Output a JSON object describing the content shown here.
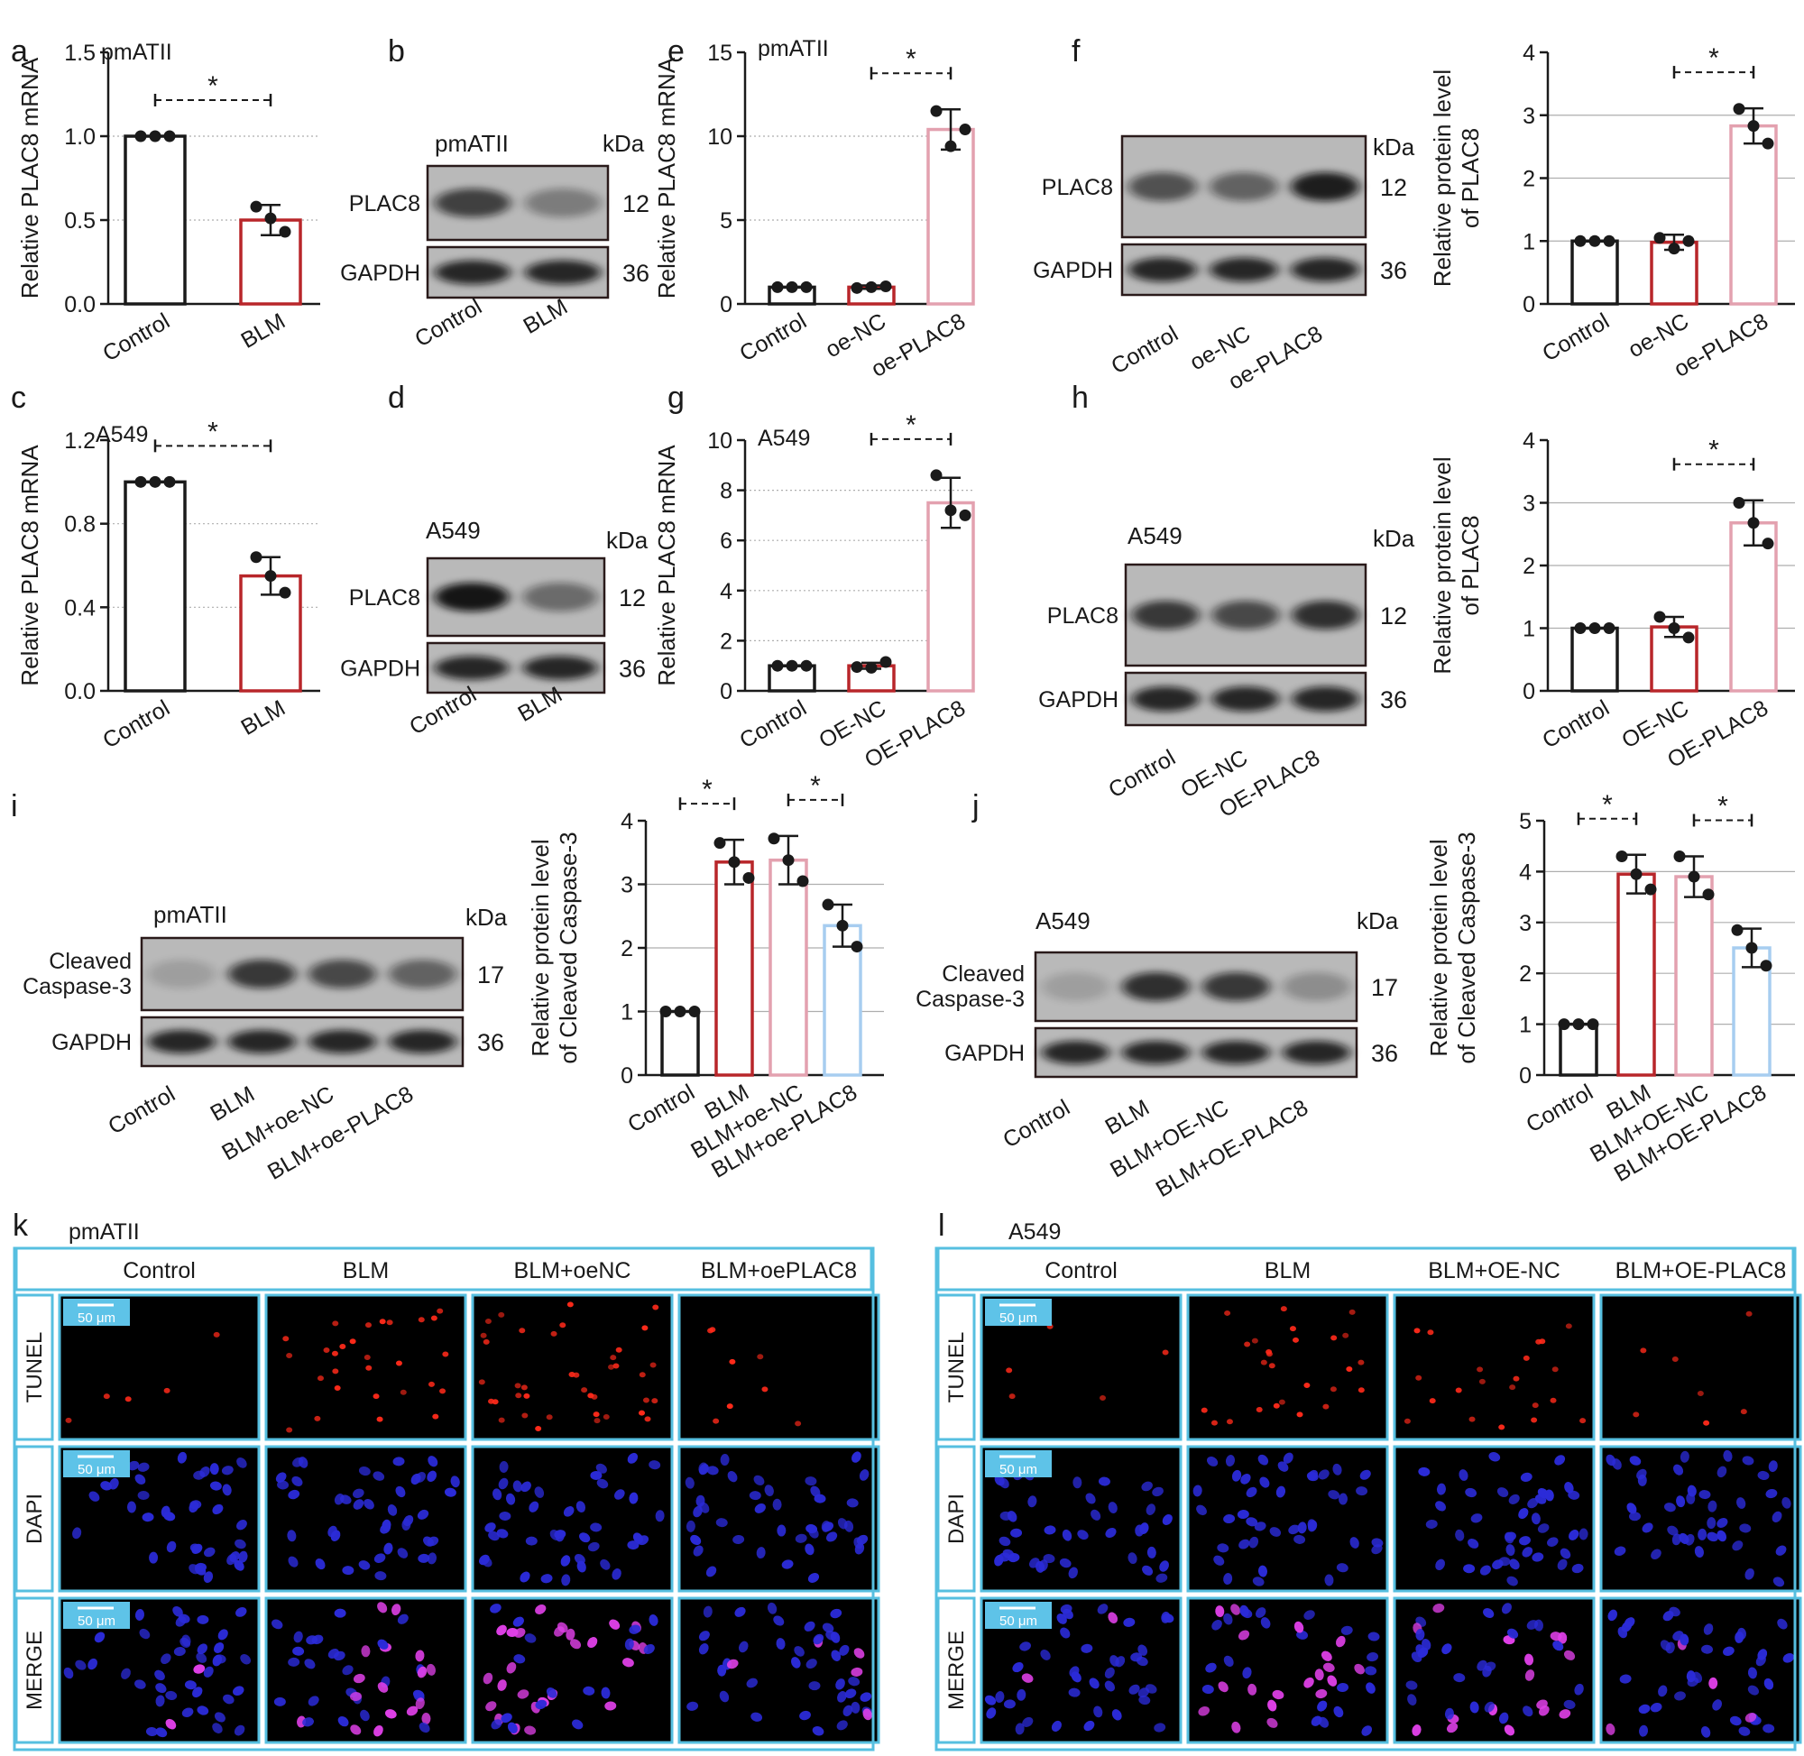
{
  "panel_letters": [
    "a",
    "b",
    "c",
    "d",
    "e",
    "f",
    "g",
    "h",
    "i",
    "j",
    "k",
    "l"
  ],
  "blots": [
    {
      "id": "b",
      "cell": "pmATII",
      "bands": [
        {
          "label": "PLAC8",
          "kda": "12"
        },
        {
          "label": "GAPDH",
          "kda": "36"
        }
      ],
      "lanes": [
        "Control",
        "BLM"
      ],
      "unit": "kDa"
    },
    {
      "id": "d",
      "cell": "A549",
      "bands": [
        {
          "label": "PLAC8",
          "kda": "12"
        },
        {
          "label": "GAPDH",
          "kda": "36"
        }
      ],
      "lanes": [
        "Control",
        "BLM"
      ],
      "unit": "kDa"
    },
    {
      "id": "f",
      "cell": "pmATII",
      "bands": [
        {
          "label": "PLAC8",
          "kda": "12"
        },
        {
          "label": "GAPDH",
          "kda": "36"
        }
      ],
      "lanes": [
        "Control",
        "oe-NC",
        "oe-PLAC8"
      ],
      "unit": "kDa"
    },
    {
      "id": "h",
      "cell": "A549",
      "bands": [
        {
          "label": "PLAC8",
          "kda": "12"
        },
        {
          "label": "GAPDH",
          "kda": "36"
        }
      ],
      "lanes": [
        "Control",
        "OE-NC",
        "OE-PLAC8"
      ],
      "unit": "kDa"
    },
    {
      "id": "i",
      "cell": "pmATII",
      "bands": [
        {
          "label": "Cleaved Caspase-3",
          "kda": "17"
        },
        {
          "label": "GAPDH",
          "kda": "36"
        }
      ],
      "lanes": [
        "Control",
        "BLM",
        "BLM+oe-NC",
        "BLM+oe-PLAC8"
      ],
      "unit": "kDa"
    },
    {
      "id": "j",
      "cell": "A549",
      "bands": [
        {
          "label": "Cleaved Caspase-3",
          "kda": "17"
        },
        {
          "label": "GAPDH",
          "kda": "36"
        }
      ],
      "lanes": [
        "Control",
        "BLM",
        "BLM+OE-NC",
        "BLM+OE-PLAC8"
      ],
      "unit": "kDa"
    }
  ],
  "colors": {
    "control": "#1a1a1a",
    "blm": "#b8262a",
    "pink": "#e3a1af",
    "blue": "#a7cdf0",
    "frame": "#56bfe0",
    "scale": "#5ec3e8"
  },
  "chart_data": [
    {
      "id": "a",
      "type": "bar",
      "cell": "pmATII",
      "categories": [
        "Control",
        "BLM"
      ],
      "values": [
        1.0,
        0.5
      ],
      "errors": [
        0.0,
        0.09
      ],
      "points": [
        [
          1.0,
          1.0,
          1.0
        ],
        [
          0.58,
          0.43,
          0.51
        ]
      ],
      "ylabel": "Relative PLAC8 mRNA",
      "ylim": [
        0,
        1.5
      ],
      "ticks": [
        "0.0",
        "0.5",
        "1.0",
        "1.5"
      ],
      "gridlines": [
        0.5,
        1.0
      ],
      "sig": [
        {
          "from": 0,
          "to": 1,
          "label": "*"
        }
      ],
      "colors": [
        "#1a1a1a",
        "#b8262a"
      ]
    },
    {
      "id": "c",
      "type": "bar",
      "cell": "A549",
      "categories": [
        "Control",
        "BLM"
      ],
      "values": [
        1.0,
        0.55
      ],
      "errors": [
        0.0,
        0.09
      ],
      "points": [
        [
          1.0,
          1.0,
          1.0
        ],
        [
          0.64,
          0.47,
          0.55
        ]
      ],
      "ylabel": "Relative PLAC8 mRNA",
      "ylim": [
        0,
        1.2
      ],
      "ticks": [
        "0.0",
        "0.4",
        "0.8",
        "1.2"
      ],
      "gridlines": [
        0.4,
        0.8
      ],
      "sig": [
        {
          "from": 0,
          "to": 1,
          "label": "*"
        }
      ],
      "colors": [
        "#1a1a1a",
        "#b8262a"
      ]
    },
    {
      "id": "e",
      "type": "bar",
      "cell": "pmATII",
      "categories": [
        "Control",
        "oe-NC",
        "oe-PLAC8"
      ],
      "values": [
        1.0,
        1.0,
        10.4
      ],
      "errors": [
        0.0,
        0.1,
        1.2
      ],
      "points": [
        [
          1.0,
          1.0,
          1.0
        ],
        [
          0.95,
          1.05,
          1.0
        ],
        [
          11.5,
          10.4,
          9.4
        ]
      ],
      "ylabel": "Relative PLAC8 mRNA",
      "ylim": [
        0,
        15
      ],
      "ticks": [
        "0",
        "5",
        "10",
        "15"
      ],
      "gridlines": [
        5,
        10
      ],
      "sig": [
        {
          "from": 1,
          "to": 2,
          "label": "*"
        }
      ],
      "colors": [
        "#1a1a1a",
        "#b8262a",
        "#e3a1af"
      ]
    },
    {
      "id": "f",
      "type": "bar",
      "categories": [
        "Control",
        "oe-NC",
        "oe-PLAC8"
      ],
      "values": [
        1.0,
        0.98,
        2.83
      ],
      "errors": [
        0.0,
        0.12,
        0.28
      ],
      "points": [
        [
          1.0,
          1.0,
          1.0
        ],
        [
          1.05,
          1.0,
          0.88
        ],
        [
          3.1,
          2.55,
          2.83
        ]
      ],
      "ylabel": "Relative protein level of PLAC8",
      "ylim": [
        0,
        4
      ],
      "ticks": [
        "0",
        "1",
        "2",
        "3",
        "4"
      ],
      "gridlines": [
        1,
        2,
        3
      ],
      "sig": [
        {
          "from": 1,
          "to": 2,
          "label": "*"
        }
      ],
      "colors": [
        "#1a1a1a",
        "#b8262a",
        "#e3a1af"
      ]
    },
    {
      "id": "g",
      "type": "bar",
      "cell": "A549",
      "categories": [
        "Control",
        "OE-NC",
        "OE-PLAC8"
      ],
      "values": [
        1.0,
        1.0,
        7.5
      ],
      "errors": [
        0.0,
        0.12,
        1.0
      ],
      "points": [
        [
          1.0,
          1.0,
          1.0
        ],
        [
          0.95,
          1.15,
          0.92
        ],
        [
          8.6,
          7.0,
          7.2
        ]
      ],
      "ylabel": "Relative PLAC8 mRNA",
      "ylim": [
        0,
        10
      ],
      "ticks": [
        "0",
        "2",
        "4",
        "6",
        "8",
        "10"
      ],
      "gridlines": [
        2,
        4,
        6,
        8
      ],
      "sig": [
        {
          "from": 1,
          "to": 2,
          "label": "*"
        }
      ],
      "colors": [
        "#1a1a1a",
        "#b8262a",
        "#e3a1af"
      ]
    },
    {
      "id": "h",
      "type": "bar",
      "categories": [
        "Control",
        "OE-NC",
        "OE-PLAC8"
      ],
      "values": [
        1.0,
        1.02,
        2.68
      ],
      "errors": [
        0.0,
        0.16,
        0.36
      ],
      "points": [
        [
          1.0,
          1.0,
          1.0
        ],
        [
          1.18,
          0.85,
          1.0
        ],
        [
          3.0,
          2.35,
          2.68
        ]
      ],
      "ylabel": "Relative protein level of PLAC8",
      "ylim": [
        0,
        4
      ],
      "ticks": [
        "0",
        "1",
        "2",
        "3",
        "4"
      ],
      "gridlines": [
        1,
        2,
        3
      ],
      "sig": [
        {
          "from": 1,
          "to": 2,
          "label": "*"
        }
      ],
      "colors": [
        "#1a1a1a",
        "#b8262a",
        "#e3a1af"
      ]
    },
    {
      "id": "i",
      "type": "bar",
      "categories": [
        "Control",
        "BLM",
        "BLM+oe-NC",
        "BLM+oe-PLAC8"
      ],
      "values": [
        1.0,
        3.35,
        3.38,
        2.35
      ],
      "errors": [
        0.0,
        0.35,
        0.38,
        0.33
      ],
      "points": [
        [
          1.0,
          1.0,
          1.0
        ],
        [
          3.65,
          3.1,
          3.35
        ],
        [
          3.72,
          3.05,
          3.38
        ],
        [
          2.68,
          2.02,
          2.35
        ]
      ],
      "ylabel": "Relative protein level of Cleaved Caspase-3",
      "ylim": [
        0,
        4
      ],
      "ticks": [
        "0",
        "1",
        "2",
        "3",
        "4"
      ],
      "gridlines": [
        1,
        2,
        3
      ],
      "sig": [
        {
          "from": 0,
          "to": 1,
          "label": "*"
        },
        {
          "from": 2,
          "to": 3,
          "label": "*"
        }
      ],
      "colors": [
        "#1a1a1a",
        "#b8262a",
        "#e3a1af",
        "#a7cdf0"
      ]
    },
    {
      "id": "j",
      "type": "bar",
      "categories": [
        "Control",
        "BLM",
        "BLM+OE-NC",
        "BLM+OE-PLAC8"
      ],
      "values": [
        1.0,
        3.95,
        3.9,
        2.5
      ],
      "errors": [
        0.0,
        0.38,
        0.4,
        0.38
      ],
      "points": [
        [
          1.0,
          1.0,
          1.0
        ],
        [
          4.3,
          3.65,
          3.95
        ],
        [
          4.3,
          3.55,
          3.9
        ],
        [
          2.85,
          2.15,
          2.5
        ]
      ],
      "ylabel": "Relative protein level of Cleaved Caspase-3",
      "ylim": [
        0,
        5
      ],
      "ticks": [
        "0",
        "1",
        "2",
        "3",
        "4",
        "5"
      ],
      "gridlines": [
        1,
        2,
        3,
        4
      ],
      "sig": [
        {
          "from": 0,
          "to": 1,
          "label": "*"
        },
        {
          "from": 2,
          "to": 3,
          "label": "*"
        }
      ],
      "colors": [
        "#1a1a1a",
        "#b8262a",
        "#e3a1af",
        "#a7cdf0"
      ]
    }
  ],
  "microscopy": [
    {
      "id": "k",
      "cell": "pmATII",
      "groups": [
        "Control",
        "BLM",
        "BLM+oeNC",
        "BLM+oePLAC8"
      ],
      "rows": [
        "TUNEL",
        "DAPI",
        "MERGE"
      ],
      "scale": "50 μm",
      "tunel_density": [
        0.05,
        0.55,
        0.8,
        0.12
      ]
    },
    {
      "id": "l",
      "cell": "A549",
      "groups": [
        "Control",
        "BLM",
        "BLM+OE-NC",
        "BLM+OE-PLAC8"
      ],
      "rows": [
        "TUNEL",
        "DAPI",
        "MERGE"
      ],
      "scale": "50 μm",
      "tunel_density": [
        0.05,
        0.5,
        0.4,
        0.08
      ]
    }
  ]
}
